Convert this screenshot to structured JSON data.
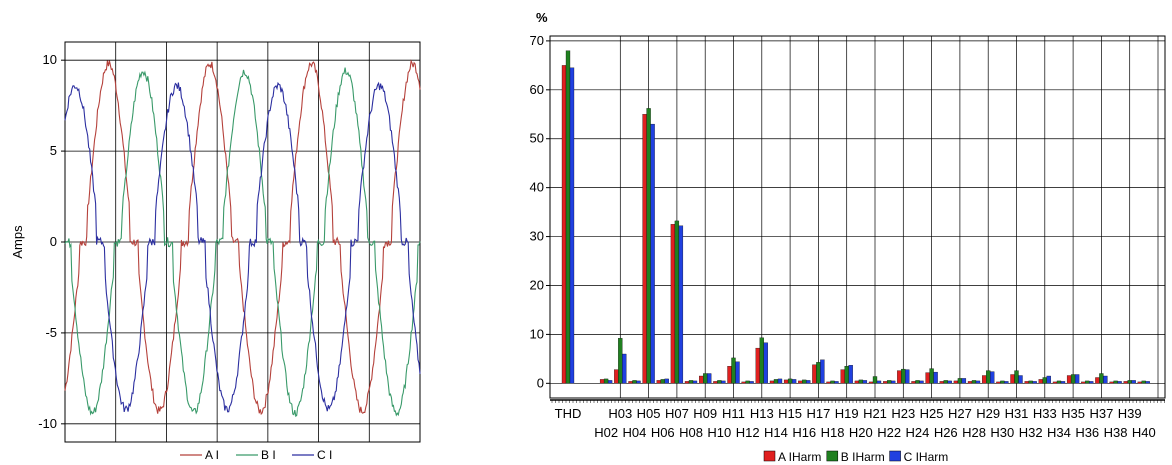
{
  "chart_data": [
    {
      "type": "line",
      "title": "",
      "xlabel": "",
      "ylabel": "Amps",
      "ylim": [
        -11,
        11
      ],
      "y_ticks": [
        "10",
        "5",
        "0",
        "-5",
        "-10"
      ],
      "y_tick_values": [
        10,
        5,
        0,
        -5,
        -10
      ],
      "grid": true,
      "legend_position": "bottom",
      "x_range": [
        0,
        3.5
      ],
      "series": [
        {
          "name": "A I",
          "color": "#b5413b",
          "kind": "phaseA"
        },
        {
          "name": "B I",
          "color": "#3a9a6a",
          "kind": "phaseB"
        },
        {
          "name": "C I",
          "color": "#2c2fa0",
          "kind": "phaseC"
        }
      ]
    },
    {
      "type": "bar",
      "title": "",
      "ylabel": "%",
      "ylim": [
        -3,
        71
      ],
      "y_ticks": [
        "70",
        "60",
        "50",
        "40",
        "30",
        "20",
        "10",
        "0"
      ],
      "y_tick_values": [
        70,
        60,
        50,
        40,
        30,
        20,
        10,
        0
      ],
      "grid": true,
      "legend_position": "bottom",
      "categories": [
        "THD",
        "H02",
        "H03",
        "H04",
        "H05",
        "H06",
        "H07",
        "H08",
        "H09",
        "H10",
        "H11",
        "H12",
        "H13",
        "H14",
        "H15",
        "H16",
        "H17",
        "H18",
        "H19",
        "H20",
        "H21",
        "H22",
        "H23",
        "H24",
        "H25",
        "H26",
        "H27",
        "H28",
        "H29",
        "H30",
        "H31",
        "H32",
        "H33",
        "H34",
        "H35",
        "H36",
        "H37",
        "H38",
        "H39",
        "H40"
      ],
      "series": [
        {
          "name": "A IHarm",
          "color": "#e02020",
          "values": [
            65,
            0.8,
            2.8,
            0.4,
            55,
            0.6,
            32.5,
            0.4,
            1.5,
            0.4,
            3.5,
            0.3,
            7.2,
            0.5,
            0.7,
            0.5,
            3.8,
            0.3,
            2.8,
            0.5,
            0.3,
            0.4,
            2.6,
            0.4,
            2.2,
            0.4,
            0.5,
            0.4,
            1.6,
            0.3,
            1.8,
            0.4,
            0.8,
            0.3,
            1.6,
            0.3,
            1.2,
            0.3,
            0.4,
            0.3
          ]
        },
        {
          "name": "B IHarm",
          "color": "#208020",
          "values": [
            68,
            0.9,
            9.2,
            0.6,
            56.2,
            0.8,
            33.2,
            0.6,
            2.0,
            0.6,
            5.2,
            0.5,
            9.3,
            0.8,
            0.9,
            0.7,
            4.3,
            0.5,
            3.5,
            0.7,
            1.4,
            0.6,
            2.9,
            0.6,
            3.0,
            0.6,
            1.0,
            0.6,
            2.6,
            0.5,
            2.6,
            0.5,
            1.2,
            0.5,
            1.8,
            0.5,
            2.0,
            0.5,
            0.6,
            0.5
          ]
        },
        {
          "name": "C IHarm",
          "color": "#2040e0",
          "values": [
            64.5,
            0.6,
            6.0,
            0.5,
            53.0,
            0.9,
            32.2,
            0.5,
            2.0,
            0.5,
            4.4,
            0.4,
            8.3,
            0.9,
            0.8,
            0.6,
            4.8,
            0.4,
            3.7,
            0.6,
            0.5,
            0.5,
            2.8,
            0.5,
            2.3,
            0.5,
            1.0,
            0.5,
            2.4,
            0.4,
            1.6,
            0.4,
            1.5,
            0.4,
            1.8,
            0.4,
            1.5,
            0.4,
            0.6,
            0.4
          ]
        }
      ]
    }
  ]
}
